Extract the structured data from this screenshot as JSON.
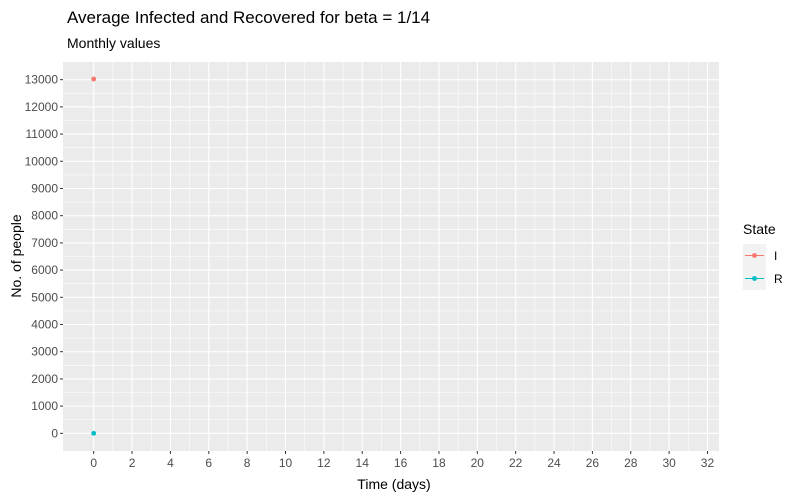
{
  "chart_data": {
    "type": "scatter",
    "title": "Average Infected and Recovered for beta = 1/14",
    "subtitle": "Monthly values",
    "xlabel": "Time (days)",
    "ylabel": "No. of people",
    "xlim": [
      -1.6,
      32.6
    ],
    "ylim": [
      -650,
      13650
    ],
    "x_ticks": [
      0,
      2,
      4,
      6,
      8,
      10,
      12,
      14,
      16,
      18,
      20,
      22,
      24,
      26,
      28,
      30,
      32
    ],
    "y_ticks": [
      0,
      1000,
      2000,
      3000,
      4000,
      5000,
      6000,
      7000,
      8000,
      9000,
      10000,
      11000,
      12000,
      13000
    ],
    "grid": true,
    "legend": {
      "title": "State",
      "position": "right"
    },
    "series": [
      {
        "name": "I",
        "color": "#F8766D",
        "points": [
          {
            "x": 0,
            "y": 13025
          }
        ]
      },
      {
        "name": "R",
        "color": "#00BFC4",
        "points": [
          {
            "x": 0,
            "y": 0
          }
        ]
      }
    ]
  }
}
